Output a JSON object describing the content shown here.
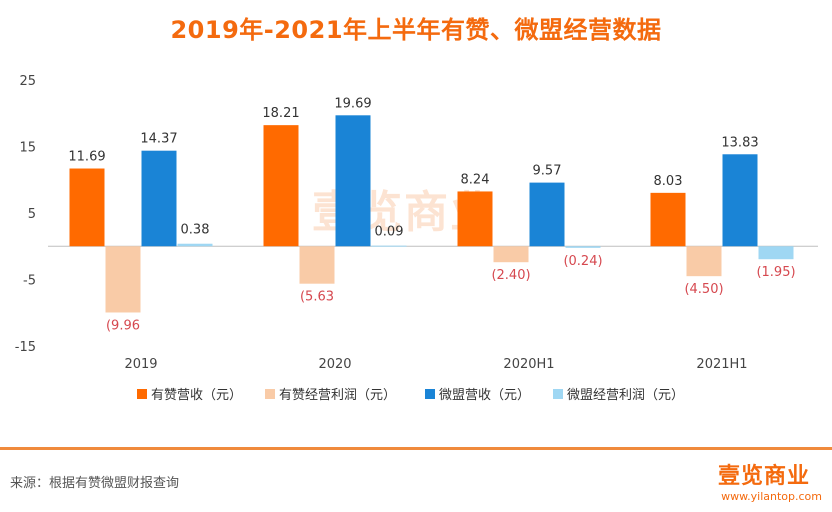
{
  "title": "2019年-2021年上半年有赞、微盟经营数据",
  "source": "来源：根据有赞微盟财报查询",
  "watermark": "壹览商业",
  "logo": "壹览商业",
  "url": "www.yilantop.com",
  "colors": {
    "youzan_revenue": "#ff6a00",
    "youzan_profit": "#f9cba7",
    "weimeng_revenue": "#1a84d6",
    "weimeng_profit": "#9fd7f3",
    "negative_label": "#d6484f",
    "title": "#f46a0e"
  },
  "chart_data": {
    "type": "bar",
    "categories": [
      "2019",
      "2020",
      "2020H1",
      "2021H1"
    ],
    "series": [
      {
        "name": "有赞营收（元）",
        "values": [
          11.69,
          18.21,
          8.24,
          8.03
        ],
        "labels": [
          "11.69",
          "18.21",
          "8.24",
          "8.03"
        ]
      },
      {
        "name": "有赞经营利润（元）",
        "values": [
          -9.96,
          -5.63,
          -2.4,
          -4.5
        ],
        "labels": [
          "(9.96",
          "(5.63",
          "(2.40)",
          "(4.50)"
        ]
      },
      {
        "name": "微盟营收（元）",
        "values": [
          14.37,
          19.69,
          9.57,
          13.83
        ],
        "labels": [
          "14.37",
          "19.69",
          "9.57",
          "13.83"
        ]
      },
      {
        "name": "微盟经营利润（元）",
        "values": [
          0.38,
          0.09,
          -0.24,
          -1.95
        ],
        "labels": [
          "0.38",
          "0.09",
          "(0.24)",
          "(1.95)"
        ]
      }
    ],
    "yticks": [
      "25",
      "15",
      "5",
      "-5",
      "-15"
    ],
    "ylim": [
      -15,
      25
    ],
    "legend_position": "bottom"
  }
}
